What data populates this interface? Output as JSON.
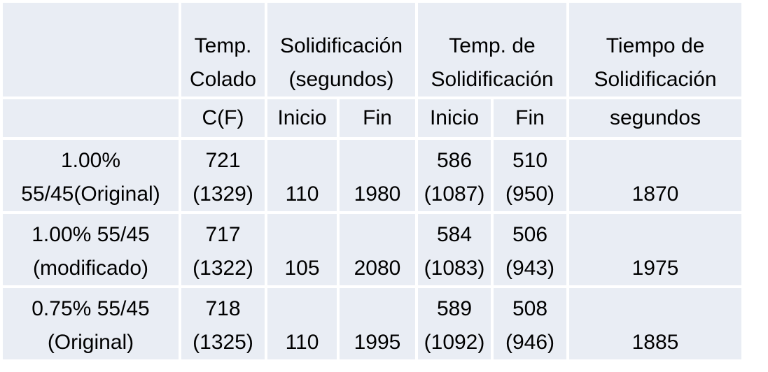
{
  "table": {
    "header1": [
      "",
      "Temp. Colado",
      "Solidificación (segundos)",
      "Temp. de Solidificación",
      "Tiempo de Solidificación"
    ],
    "header2": [
      "",
      "C(F)",
      "Inicio",
      "Fin",
      "Inicio",
      "Fin",
      "segundos"
    ],
    "rows": [
      {
        "label": [
          "1.00%",
          "55/45(Original)"
        ],
        "colado": [
          "721",
          "(1329)"
        ],
        "sol_inicio": "110",
        "sol_fin": "1980",
        "temp_inicio": [
          "586",
          "(1087)"
        ],
        "temp_fin": [
          "510",
          "(950)"
        ],
        "tiempo": "1870"
      },
      {
        "label": [
          "1.00% 55/45",
          "(modificado)"
        ],
        "colado": [
          "717",
          "(1322)"
        ],
        "sol_inicio": "105",
        "sol_fin": "2080",
        "temp_inicio": [
          "584",
          "(1083)"
        ],
        "temp_fin": [
          "506",
          "(943)"
        ],
        "tiempo": "1975"
      },
      {
        "label": [
          "0.75% 55/45",
          "(Original)"
        ],
        "colado": [
          "718",
          "(1325)"
        ],
        "sol_inicio": "110",
        "sol_fin": "1995",
        "temp_inicio": [
          "589",
          "(1092)"
        ],
        "temp_fin": [
          "508",
          "(946)"
        ],
        "tiempo": "1885"
      }
    ]
  },
  "colors": {
    "cell": "#e9edf4",
    "border": "#ffffff"
  }
}
